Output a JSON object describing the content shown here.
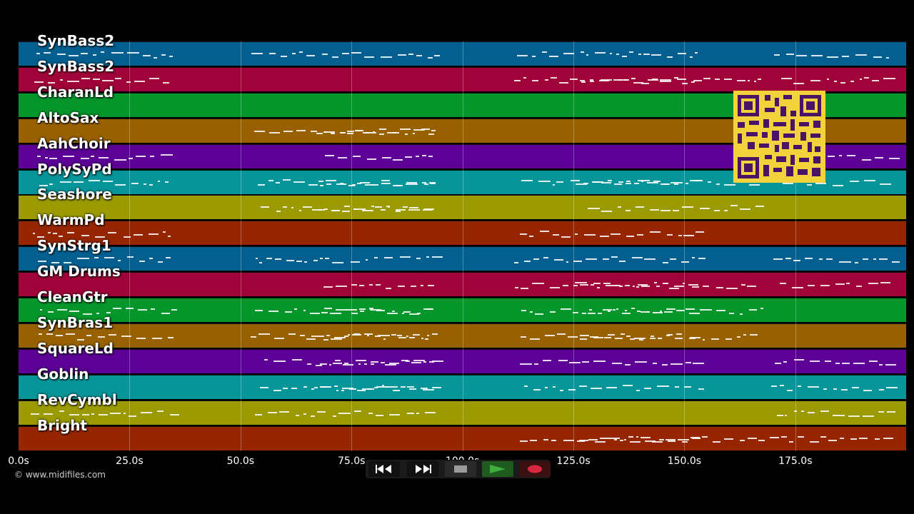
{
  "tracks": [
    {
      "label": "SynBass2",
      "color": "#035f8f"
    },
    {
      "label": "SynBass2",
      "color": "#a0033a"
    },
    {
      "label": "CharanLd",
      "color": "#04962a"
    },
    {
      "label": "AltoSax",
      "color": "#986100"
    },
    {
      "label": "AahChoir",
      "color": "#5c0096"
    },
    {
      "label": "PolySyPd",
      "color": "#07959a"
    },
    {
      "label": "Seashore",
      "color": "#9b9a00"
    },
    {
      "label": "WarmPd",
      "color": "#952600"
    },
    {
      "label": "SynStrg1",
      "color": "#035f8f"
    },
    {
      "label": "GM Drums",
      "color": "#a0033a"
    },
    {
      "label": "CleanGtr",
      "color": "#04962a"
    },
    {
      "label": "SynBras1",
      "color": "#986100"
    },
    {
      "label": "SquareLd",
      "color": "#5c0096"
    },
    {
      "label": "Goblin",
      "color": "#07959a"
    },
    {
      "label": "RevCymbl",
      "color": "#9b9a00"
    },
    {
      "label": "Bright",
      "color": "#952600"
    }
  ],
  "timeline": {
    "ticks": [
      "0.0s",
      "25.0s",
      "50.0s",
      "75.0s",
      "100.0s",
      "125.0s",
      "150.0s",
      "175.0s"
    ]
  },
  "copyright": "© www.midifiles.com",
  "transport": {
    "rewind_icon": "rewind-icon",
    "fastforward_icon": "fast-forward-icon",
    "stop_icon": "stop-icon",
    "play_icon": "play-icon",
    "record_icon": "record-icon",
    "play_color": "#3fae3f",
    "record_color": "#d8283f"
  },
  "qr_icon": "qr-code-icon"
}
